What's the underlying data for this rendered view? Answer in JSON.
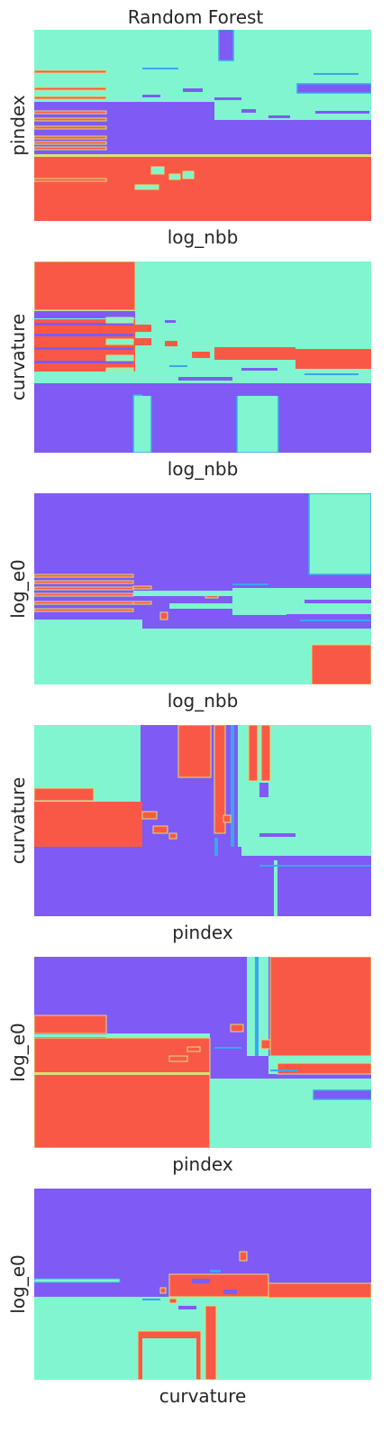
{
  "title": "Random Forest",
  "colors": {
    "cyan": "#80f5cf",
    "purple": "#7f5af5",
    "red": "#fa5847",
    "yellow": "#d8e07a",
    "blue": "#3ba6ee"
  },
  "chart_data": [
    {
      "type": "heatmap",
      "xlabel": "log_nbb",
      "ylabel": "pindex"
    },
    {
      "type": "heatmap",
      "xlabel": "log_nbb",
      "ylabel": "curvature"
    },
    {
      "type": "heatmap",
      "xlabel": "log_nbb",
      "ylabel": "log_e0"
    },
    {
      "type": "heatmap",
      "xlabel": "pindex",
      "ylabel": "curvature"
    },
    {
      "type": "heatmap",
      "xlabel": "pindex",
      "ylabel": "log_e0"
    },
    {
      "type": "heatmap",
      "xlabel": "curvature",
      "ylabel": "log_e0"
    }
  ]
}
